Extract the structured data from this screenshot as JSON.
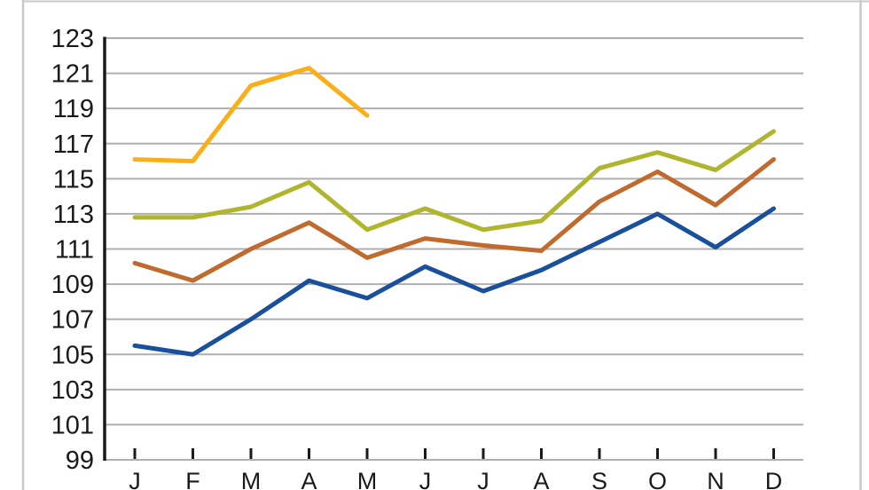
{
  "chart_data": {
    "type": "line",
    "title": "",
    "xlabel": "",
    "ylabel": "",
    "categories": [
      "J",
      "F",
      "M",
      "A",
      "M",
      "J",
      "J",
      "A",
      "S",
      "O",
      "N",
      "D"
    ],
    "series": [
      {
        "name": "yellow-series",
        "color": "#FAAF18",
        "values": [
          116.1,
          116.0,
          120.3,
          121.3,
          118.6,
          null,
          null,
          null,
          null,
          null,
          null,
          null
        ]
      },
      {
        "name": "green-series",
        "color": "#AFB52C",
        "values": [
          112.8,
          112.8,
          113.4,
          114.8,
          112.1,
          113.3,
          112.1,
          112.6,
          115.6,
          116.5,
          115.5,
          117.7
        ]
      },
      {
        "name": "orange-series",
        "color": "#C16A2E",
        "values": [
          110.2,
          109.2,
          111.0,
          112.5,
          110.5,
          111.6,
          111.2,
          110.9,
          113.7,
          115.4,
          113.5,
          116.1
        ]
      },
      {
        "name": "blue-series",
        "color": "#1A4F9B",
        "values": [
          105.5,
          105.0,
          107.0,
          109.2,
          108.2,
          110.0,
          108.6,
          109.8,
          111.4,
          113.0,
          111.1,
          113.3
        ]
      }
    ],
    "ylim": [
      99,
      123
    ],
    "yticks": [
      123,
      121,
      119,
      117,
      115,
      113,
      111,
      109,
      107,
      105,
      103,
      101,
      99
    ],
    "ytick_step": 2,
    "grid": true,
    "legend": "none"
  },
  "colors": {
    "background": "#ffffff",
    "grid": "#AFAFAF",
    "axis": "#1A1A1A",
    "text": "#1A1A1A",
    "frame": "#C9C9C9"
  }
}
